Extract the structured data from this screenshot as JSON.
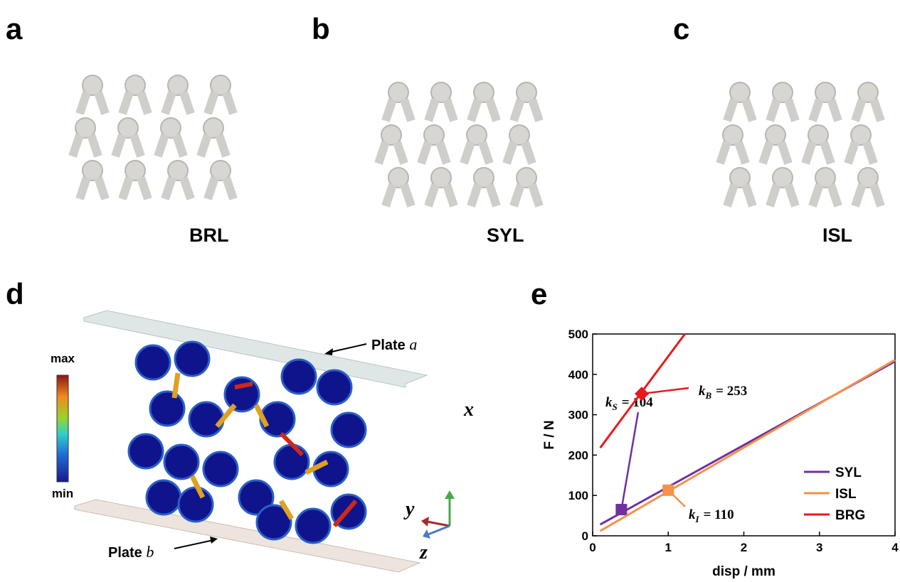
{
  "panels": {
    "a": {
      "letter": "a",
      "label": "BRL"
    },
    "b": {
      "letter": "b",
      "label": "SYL"
    },
    "c": {
      "letter": "c",
      "label": "ISL"
    },
    "d": {
      "letter": "d",
      "colorbar": {
        "max": "max",
        "min": "min"
      },
      "plate_a": {
        "text": "Plate",
        "symbol": "a"
      },
      "plate_b": {
        "text": "Plate",
        "symbol": "b"
      },
      "axes": {
        "x": "x",
        "y": "y",
        "z": "z"
      }
    },
    "e": {
      "letter": "e"
    }
  },
  "chart_data": {
    "type": "line",
    "xlabel": "disp / mm",
    "ylabel": "F / N",
    "xlim": [
      0,
      4
    ],
    "ylim": [
      0,
      500
    ],
    "xticks": [
      0,
      1,
      2,
      3,
      4
    ],
    "yticks": [
      0,
      100,
      200,
      300,
      400,
      500
    ],
    "legend": "lower right",
    "series": [
      {
        "name": "SYL",
        "color": "#7030a0",
        "x": [
          0.1,
          4
        ],
        "values": [
          28,
          432
        ],
        "marker": {
          "x": 0.38,
          "y": 65,
          "shape": "square"
        },
        "annotation": {
          "symbol": "k",
          "subscript": "S",
          "text": "= 104"
        }
      },
      {
        "name": "ISL",
        "color": "#f4914b",
        "x": [
          0.1,
          4
        ],
        "values": [
          12,
          436
        ],
        "marker": {
          "x": 1.0,
          "y": 113,
          "shape": "square"
        },
        "annotation": {
          "symbol": "k",
          "subscript": "I",
          "text": "= 110"
        }
      },
      {
        "name": "BRG",
        "color": "#e8191c",
        "x": [
          0.1,
          1.22
        ],
        "values": [
          218,
          500
        ],
        "marker": {
          "x": 0.65,
          "y": 352,
          "shape": "diamond"
        },
        "annotation": {
          "symbol": "k",
          "subscript": "B",
          "text": "= 253"
        }
      }
    ]
  }
}
